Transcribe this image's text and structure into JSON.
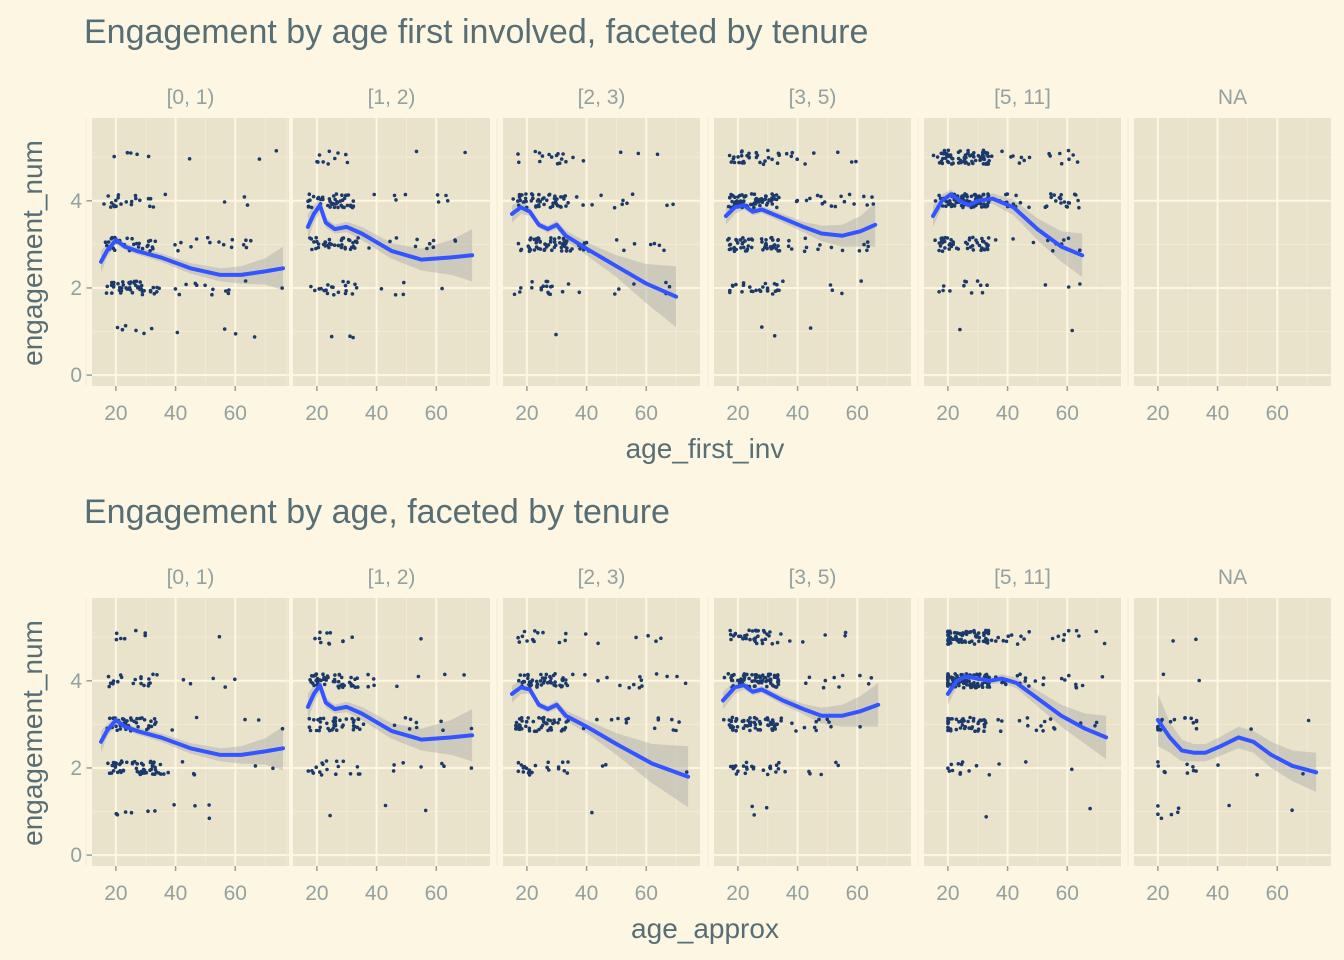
{
  "colors": {
    "background": "#FDF6E3",
    "panel": "#EAE3CB",
    "grid_major": "#FDF6E3",
    "grid_minor": "#F2EBD4",
    "points": "#1B3A6B",
    "smooth_line": "#3355FF",
    "ribbon": "#AAAAAA",
    "title_text": "#586E75",
    "tick_text": "#93A1A1"
  },
  "chart_data": [
    {
      "type": "scatter",
      "title": "Engagement by age first involved, faceted by tenure",
      "xlabel": "age_first_inv",
      "ylabel": "engagement_num",
      "x_ticks": [
        "20",
        "40",
        "60"
      ],
      "y_ticks": [
        "0",
        "2",
        "4"
      ],
      "xlim": [
        12,
        78
      ],
      "ylim": [
        -0.25,
        5.9
      ],
      "facet_variable": "tenure",
      "facets": [
        {
          "label": "[0, 1)",
          "counts": [
            0,
            10,
            60,
            45,
            25,
            8
          ],
          "age_range": [
            15,
            76
          ],
          "smooth": [
            [
              15,
              2.6
            ],
            [
              17,
              2.85
            ],
            [
              20,
              3.1
            ],
            [
              23,
              2.95
            ],
            [
              27,
              2.85
            ],
            [
              35,
              2.7
            ],
            [
              45,
              2.45
            ],
            [
              55,
              2.3
            ],
            [
              62,
              2.3
            ],
            [
              70,
              2.38
            ],
            [
              76,
              2.45
            ]
          ],
          "ribbon_halfwidth": [
            0.25,
            0.15,
            0.1,
            0.08,
            0.08,
            0.1,
            0.12,
            0.15,
            0.2,
            0.3,
            0.5
          ]
        },
        {
          "label": "[1, 2)",
          "counts": [
            0,
            3,
            25,
            50,
            55,
            12
          ],
          "age_range": [
            17,
            72
          ],
          "smooth": [
            [
              17,
              3.4
            ],
            [
              19,
              3.7
            ],
            [
              21,
              3.9
            ],
            [
              23,
              3.5
            ],
            [
              26,
              3.35
            ],
            [
              30,
              3.4
            ],
            [
              35,
              3.25
            ],
            [
              45,
              2.85
            ],
            [
              55,
              2.65
            ],
            [
              65,
              2.7
            ],
            [
              72,
              2.75
            ]
          ],
          "ribbon_halfwidth": [
            0.3,
            0.2,
            0.15,
            0.12,
            0.1,
            0.12,
            0.15,
            0.18,
            0.25,
            0.4,
            0.6
          ]
        },
        {
          "label": "[2, 3)",
          "counts": [
            0,
            1,
            25,
            65,
            65,
            20
          ],
          "age_range": [
            15,
            70
          ],
          "smooth": [
            [
              15,
              3.7
            ],
            [
              18,
              3.85
            ],
            [
              21,
              3.75
            ],
            [
              24,
              3.45
            ],
            [
              27,
              3.35
            ],
            [
              30,
              3.45
            ],
            [
              33,
              3.2
            ],
            [
              40,
              2.9
            ],
            [
              50,
              2.5
            ],
            [
              60,
              2.1
            ],
            [
              70,
              1.8
            ]
          ],
          "ribbon_halfwidth": [
            0.2,
            0.15,
            0.1,
            0.08,
            0.08,
            0.1,
            0.12,
            0.15,
            0.25,
            0.45,
            0.7
          ]
        },
        {
          "label": "[3, 5)",
          "counts": [
            0,
            3,
            30,
            70,
            85,
            40
          ],
          "age_range": [
            16,
            66
          ],
          "smooth": [
            [
              16,
              3.65
            ],
            [
              19,
              3.85
            ],
            [
              22,
              3.9
            ],
            [
              25,
              3.75
            ],
            [
              28,
              3.8
            ],
            [
              35,
              3.6
            ],
            [
              42,
              3.4
            ],
            [
              48,
              3.25
            ],
            [
              55,
              3.2
            ],
            [
              61,
              3.3
            ],
            [
              66,
              3.45
            ]
          ],
          "ribbon_halfwidth": [
            0.2,
            0.15,
            0.1,
            0.08,
            0.08,
            0.1,
            0.12,
            0.18,
            0.25,
            0.35,
            0.5
          ]
        },
        {
          "label": "[5, 11]",
          "counts": [
            0,
            2,
            15,
            60,
            120,
            90
          ],
          "age_range": [
            15,
            65
          ],
          "smooth": [
            [
              15,
              3.65
            ],
            [
              18,
              4.0
            ],
            [
              21,
              4.15
            ],
            [
              24,
              4.0
            ],
            [
              27,
              3.9
            ],
            [
              30,
              4.0
            ],
            [
              35,
              4.05
            ],
            [
              42,
              3.85
            ],
            [
              50,
              3.35
            ],
            [
              58,
              2.95
            ],
            [
              65,
              2.75
            ]
          ],
          "ribbon_halfwidth": [
            0.25,
            0.15,
            0.1,
            0.08,
            0.08,
            0.1,
            0.12,
            0.18,
            0.25,
            0.35,
            0.5
          ]
        },
        {
          "label": "NA",
          "counts": [
            0,
            0,
            0,
            0,
            0,
            0
          ],
          "age_range": [
            20,
            72
          ],
          "smooth": [],
          "ribbon_halfwidth": []
        }
      ]
    },
    {
      "type": "scatter",
      "title": "Engagement by age, faceted by tenure",
      "xlabel": "age_approx",
      "ylabel": "engagement_num",
      "x_ticks": [
        "20",
        "40",
        "60"
      ],
      "y_ticks": [
        "0",
        "2",
        "4"
      ],
      "xlim": [
        12,
        78
      ],
      "ylim": [
        -0.25,
        5.9
      ],
      "facet_variable": "tenure",
      "facets": [
        {
          "label": "[0, 1)",
          "counts": [
            0,
            10,
            60,
            45,
            25,
            8
          ],
          "age_range": [
            15,
            76
          ],
          "smooth": [
            [
              15,
              2.6
            ],
            [
              17,
              2.85
            ],
            [
              20,
              3.1
            ],
            [
              23,
              2.95
            ],
            [
              27,
              2.85
            ],
            [
              35,
              2.7
            ],
            [
              45,
              2.45
            ],
            [
              55,
              2.3
            ],
            [
              62,
              2.3
            ],
            [
              70,
              2.38
            ],
            [
              76,
              2.45
            ]
          ],
          "ribbon_halfwidth": [
            0.25,
            0.15,
            0.1,
            0.08,
            0.08,
            0.1,
            0.12,
            0.15,
            0.2,
            0.3,
            0.5
          ]
        },
        {
          "label": "[1, 2)",
          "counts": [
            0,
            3,
            25,
            50,
            55,
            12
          ],
          "age_range": [
            17,
            72
          ],
          "smooth": [
            [
              17,
              3.4
            ],
            [
              19,
              3.7
            ],
            [
              21,
              3.9
            ],
            [
              23,
              3.5
            ],
            [
              26,
              3.35
            ],
            [
              30,
              3.4
            ],
            [
              35,
              3.25
            ],
            [
              45,
              2.85
            ],
            [
              55,
              2.65
            ],
            [
              65,
              2.7
            ],
            [
              72,
              2.75
            ]
          ],
          "ribbon_halfwidth": [
            0.3,
            0.2,
            0.15,
            0.12,
            0.1,
            0.12,
            0.15,
            0.18,
            0.25,
            0.4,
            0.6
          ]
        },
        {
          "label": "[2, 3)",
          "counts": [
            0,
            1,
            25,
            65,
            65,
            20
          ],
          "age_range": [
            15,
            74
          ],
          "smooth": [
            [
              15,
              3.7
            ],
            [
              18,
              3.85
            ],
            [
              21,
              3.8
            ],
            [
              24,
              3.45
            ],
            [
              27,
              3.35
            ],
            [
              30,
              3.45
            ],
            [
              33,
              3.2
            ],
            [
              40,
              2.95
            ],
            [
              50,
              2.55
            ],
            [
              62,
              2.1
            ],
            [
              74,
              1.8
            ]
          ],
          "ribbon_halfwidth": [
            0.2,
            0.15,
            0.1,
            0.08,
            0.08,
            0.1,
            0.12,
            0.15,
            0.25,
            0.45,
            0.7
          ]
        },
        {
          "label": "[3, 5)",
          "counts": [
            0,
            3,
            30,
            70,
            85,
            40
          ],
          "age_range": [
            15,
            67
          ],
          "smooth": [
            [
              15,
              3.55
            ],
            [
              19,
              3.85
            ],
            [
              22,
              3.9
            ],
            [
              25,
              3.75
            ],
            [
              28,
              3.8
            ],
            [
              35,
              3.55
            ],
            [
              42,
              3.35
            ],
            [
              48,
              3.2
            ],
            [
              55,
              3.2
            ],
            [
              61,
              3.3
            ],
            [
              67,
              3.45
            ]
          ],
          "ribbon_halfwidth": [
            0.2,
            0.15,
            0.1,
            0.08,
            0.08,
            0.1,
            0.12,
            0.18,
            0.25,
            0.35,
            0.5
          ]
        },
        {
          "label": "[5, 11]",
          "counts": [
            0,
            2,
            15,
            60,
            120,
            90
          ],
          "age_range": [
            20,
            73
          ],
          "smooth": [
            [
              20,
              3.7
            ],
            [
              23,
              4.0
            ],
            [
              26,
              4.1
            ],
            [
              30,
              4.05
            ],
            [
              34,
              4.0
            ],
            [
              38,
              4.05
            ],
            [
              43,
              3.95
            ],
            [
              50,
              3.6
            ],
            [
              58,
              3.2
            ],
            [
              66,
              2.9
            ],
            [
              73,
              2.7
            ]
          ],
          "ribbon_halfwidth": [
            0.25,
            0.15,
            0.1,
            0.08,
            0.08,
            0.1,
            0.12,
            0.18,
            0.25,
            0.35,
            0.5
          ]
        },
        {
          "label": "NA",
          "counts": [
            0,
            8,
            12,
            20,
            2,
            2
          ],
          "age_range": [
            20,
            73
          ],
          "smooth": [
            [
              20,
              3.1
            ],
            [
              24,
              2.7
            ],
            [
              28,
              2.4
            ],
            [
              32,
              2.35
            ],
            [
              36,
              2.35
            ],
            [
              41,
              2.5
            ],
            [
              47,
              2.7
            ],
            [
              52,
              2.6
            ],
            [
              58,
              2.3
            ],
            [
              65,
              2.05
            ],
            [
              73,
              1.9
            ]
          ],
          "ribbon_halfwidth": [
            0.6,
            0.35,
            0.25,
            0.2,
            0.2,
            0.22,
            0.25,
            0.25,
            0.3,
            0.35,
            0.45
          ]
        }
      ]
    }
  ]
}
